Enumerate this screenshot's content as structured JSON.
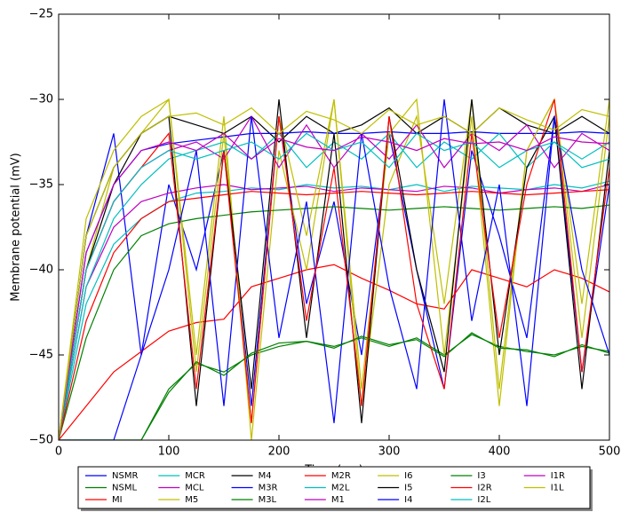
{
  "chart_data": {
    "type": "line",
    "xlabel": "Time (ms)",
    "ylabel": "Membrane potential (mV)",
    "xlim": [
      0,
      500
    ],
    "ylim": [
      -50,
      -25
    ],
    "xticks": [
      0,
      100,
      200,
      300,
      400,
      500
    ],
    "yticks": [
      {
        "value": -50,
        "label": "−50"
      },
      {
        "value": -45,
        "label": "−45"
      },
      {
        "value": -40,
        "label": "−40"
      },
      {
        "value": -35,
        "label": "−35"
      },
      {
        "value": -30,
        "label": "−30"
      },
      {
        "value": -25,
        "label": "−25"
      }
    ],
    "grid": false,
    "legend": "lower center",
    "x": [
      0,
      25,
      50,
      75,
      100,
      125,
      150,
      175,
      200,
      225,
      250,
      275,
      300,
      325,
      350,
      375,
      400,
      425,
      450,
      475,
      500
    ],
    "series": [
      {
        "name": "NSMR",
        "color": "#0000ff",
        "values": [
          -50,
          -38,
          -32,
          -45,
          -35,
          -40,
          -33,
          -48,
          -31,
          -42,
          -36,
          -45,
          -32,
          -40,
          -47,
          -33,
          -38,
          -44,
          -31,
          -46,
          -35
        ]
      },
      {
        "name": "NSML",
        "color": "#008000",
        "values": [
          -50,
          -50,
          -50,
          -50,
          -47,
          -45.5,
          -46,
          -45,
          -44.5,
          -44.2,
          -44.5,
          -44,
          -44.5,
          -44,
          -45,
          -43.8,
          -44.5,
          -44.8,
          -45,
          -44.5,
          -44.8
        ]
      },
      {
        "name": "MI",
        "color": "#ff0000",
        "values": [
          -50,
          -48,
          -46,
          -44.8,
          -43.6,
          -43.1,
          -42.9,
          -41,
          -40.5,
          -40,
          -39.7,
          -40.5,
          -41.2,
          -42,
          -42.3,
          -40,
          -40.5,
          -41,
          -40,
          -40.5,
          -41.3
        ]
      },
      {
        "name": "MCR",
        "color": "#00bfbf",
        "values": [
          -50,
          -42,
          -38.5,
          -37,
          -36,
          -35.5,
          -35.4,
          -35.2,
          -35.3,
          -35,
          -35.2,
          -35.1,
          -35.3,
          -35,
          -35.4,
          -35.1,
          -35.2,
          -35.3,
          -35,
          -35.2,
          -34.8
        ]
      },
      {
        "name": "MCL",
        "color": "#bf00bf",
        "values": [
          -50,
          -41,
          -37.5,
          -36,
          -35.5,
          -35.2,
          -35,
          -35.3,
          -35.2,
          -35.1,
          -35.4,
          -35.2,
          -35.3,
          -35.4,
          -35.1,
          -35.2,
          -35.5,
          -35.3,
          -35.2,
          -35.4,
          -35
        ]
      },
      {
        "name": "M5",
        "color": "#bfbf00",
        "values": [
          -50,
          -40,
          -34,
          -32,
          -30,
          -45,
          -31,
          -50,
          -33,
          -40,
          -30,
          -48,
          -35,
          -31,
          -42,
          -30,
          -47,
          -33,
          -30,
          -44,
          -31
        ]
      },
      {
        "name": "M4",
        "color": "#000000",
        "values": [
          -50,
          -38,
          -34,
          -32,
          -31,
          -31.5,
          -32,
          -31,
          -32.5,
          -31,
          -32,
          -31.5,
          -30.5,
          -32,
          -31,
          -32,
          -30.5,
          -31.5,
          -32,
          -31,
          -32
        ]
      },
      {
        "name": "M3R",
        "color": "#0000ff",
        "values": [
          -50,
          -39,
          -35,
          -33,
          -32.6,
          -32.4,
          -32.2,
          -32,
          -32,
          -31.9,
          -32,
          -32,
          -31.9,
          -32,
          -32,
          -31.9,
          -32,
          -32,
          -32,
          -31.9,
          -32
        ]
      },
      {
        "name": "M3L",
        "color": "#008000",
        "values": [
          -50,
          -44,
          -40,
          -38,
          -37.3,
          -37,
          -36.8,
          -36.6,
          -36.5,
          -36.4,
          -36.3,
          -36.4,
          -36.5,
          -36.4,
          -36.3,
          -36.4,
          -36.5,
          -36.4,
          -36.3,
          -36.4,
          -36.2
        ]
      },
      {
        "name": "M2R",
        "color": "#ff0000",
        "values": [
          -50,
          -43,
          -39,
          -37,
          -36,
          -35.8,
          -35.6,
          -35.4,
          -35.5,
          -35.6,
          -35.5,
          -35.4,
          -35.5,
          -35.6,
          -35.5,
          -35.4,
          -35.5,
          -35.6,
          -35.5,
          -35.4,
          -35.3
        ]
      },
      {
        "name": "M2L",
        "color": "#00bfbf",
        "values": [
          -50,
          -41,
          -37,
          -35,
          -33.5,
          -33,
          -32.5,
          -33.5,
          -32,
          -34,
          -32.5,
          -33.5,
          -32,
          -34,
          -32.5,
          -33.5,
          -32,
          -34,
          -32.5,
          -33.5,
          -32.5
        ]
      },
      {
        "name": "M1",
        "color": "#bf00bf",
        "values": [
          -50,
          -40,
          -36,
          -34,
          -33,
          -32.5,
          -33.5,
          -31,
          -34,
          -31.5,
          -34,
          -32,
          -33.5,
          -31.5,
          -34,
          -32,
          -33,
          -31.5,
          -34,
          -32,
          -33
        ]
      },
      {
        "name": "I6",
        "color": "#bfbf00",
        "values": [
          -50,
          -37,
          -33,
          -31,
          -30,
          -46,
          -32,
          -49,
          -31,
          -38,
          -30,
          -47,
          -32,
          -30,
          -45,
          -31,
          -48,
          -33,
          -30,
          -42,
          -30
        ]
      },
      {
        "name": "I5",
        "color": "#000000",
        "values": [
          -50,
          -40,
          -35,
          -32,
          -31,
          -48,
          -33,
          -47,
          -30,
          -44,
          -32,
          -49,
          -31,
          -40,
          -46,
          -30,
          -45,
          -34,
          -31,
          -47,
          -33
        ]
      },
      {
        "name": "I4",
        "color": "#0000ff",
        "values": [
          -50,
          -50,
          -50,
          -45,
          -40,
          -33,
          -48,
          -31,
          -44,
          -36,
          -49,
          -32,
          -41,
          -47,
          -30,
          -43,
          -35,
          -48,
          -31,
          -40,
          -45
        ]
      },
      {
        "name": "I3",
        "color": "#008000",
        "values": [
          -50,
          -50,
          -50,
          -50,
          -47.2,
          -45.4,
          -46.2,
          -44.9,
          -44.3,
          -44.2,
          -44.6,
          -43.9,
          -44.4,
          -44.1,
          -45.1,
          -43.7,
          -44.6,
          -44.7,
          -45.1,
          -44.4,
          -44.9
        ]
      },
      {
        "name": "I2R",
        "color": "#ff0000",
        "values": [
          -50,
          -40,
          -36,
          -34,
          -32,
          -47,
          -33,
          -49,
          -31,
          -43,
          -34,
          -48,
          -31,
          -42,
          -47,
          -32,
          -44,
          -35,
          -30,
          -46,
          -34
        ]
      },
      {
        "name": "I2L",
        "color": "#00bfbf",
        "values": [
          -50,
          -40,
          -36,
          -34,
          -33,
          -33.5,
          -33,
          -32.5,
          -33.5,
          -32,
          -33,
          -32.5,
          -34,
          -32,
          -33,
          -32.5,
          -34,
          -33,
          -32.5,
          -34,
          -33.5
        ]
      },
      {
        "name": "I1R",
        "color": "#bf00bf",
        "values": [
          -50,
          -39,
          -35,
          -33,
          -32.5,
          -33,
          -32,
          -33.5,
          -32.3,
          -32.8,
          -33,
          -32.2,
          -32.5,
          -33,
          -32.3,
          -32.6,
          -32.5,
          -33,
          -32.2,
          -32.5,
          -32.6
        ]
      },
      {
        "name": "I1L",
        "color": "#bfbf00",
        "values": [
          -50,
          -38,
          -34,
          -32,
          -31,
          -30.8,
          -31.5,
          -30.5,
          -32,
          -30.7,
          -31.2,
          -32,
          -30.6,
          -31.5,
          -31,
          -32,
          -30.5,
          -31.2,
          -31.8,
          -30.6,
          -31
        ]
      }
    ]
  }
}
